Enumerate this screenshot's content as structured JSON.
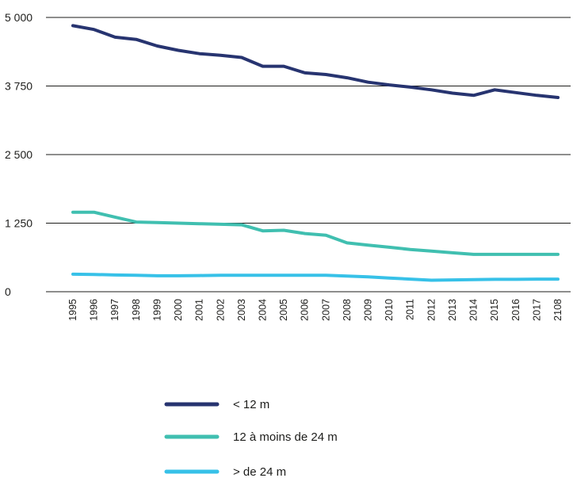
{
  "chart_data": {
    "type": "line",
    "title": "",
    "xlabel": "",
    "ylabel": "",
    "ylim": [
      0,
      5000
    ],
    "yticks": [
      0,
      1250,
      2500,
      3750,
      5000
    ],
    "ytick_labels": [
      "0",
      "1 250",
      "2 500",
      "3 750",
      "5 000"
    ],
    "grid": "horizontal",
    "legend_position": "bottom",
    "x": [
      "1995",
      "1996",
      "1997",
      "1998",
      "1999",
      "2000",
      "2001",
      "2002",
      "2003",
      "2004",
      "2005",
      "2006",
      "2007",
      "2008",
      "2009",
      "2010",
      "2011",
      "2012",
      "2013",
      "2014",
      "2015",
      "2016",
      "2017",
      "2108"
    ],
    "series": [
      {
        "name": "< 12 m",
        "color": "#273470",
        "values": [
          4850,
          4780,
          4640,
          4600,
          4480,
          4400,
          4340,
          4310,
          4270,
          4110,
          4110,
          3990,
          3960,
          3900,
          3820,
          3770,
          3730,
          3680,
          3620,
          3580,
          3680,
          3630,
          3580,
          3540
        ]
      },
      {
        "name": "12 à moins de 24 m",
        "color": "#40bfb0",
        "values": [
          1450,
          1450,
          1360,
          1270,
          1260,
          1250,
          1240,
          1230,
          1220,
          1110,
          1120,
          1060,
          1030,
          890,
          850,
          810,
          770,
          740,
          710,
          680,
          680,
          680,
          680,
          680
        ]
      },
      {
        "name": "> de 24 m",
        "color": "#37c1e8",
        "values": [
          320,
          315,
          305,
          300,
          290,
          290,
          295,
          300,
          300,
          300,
          300,
          300,
          300,
          285,
          270,
          250,
          230,
          210,
          215,
          220,
          225,
          225,
          230,
          230
        ]
      }
    ]
  }
}
